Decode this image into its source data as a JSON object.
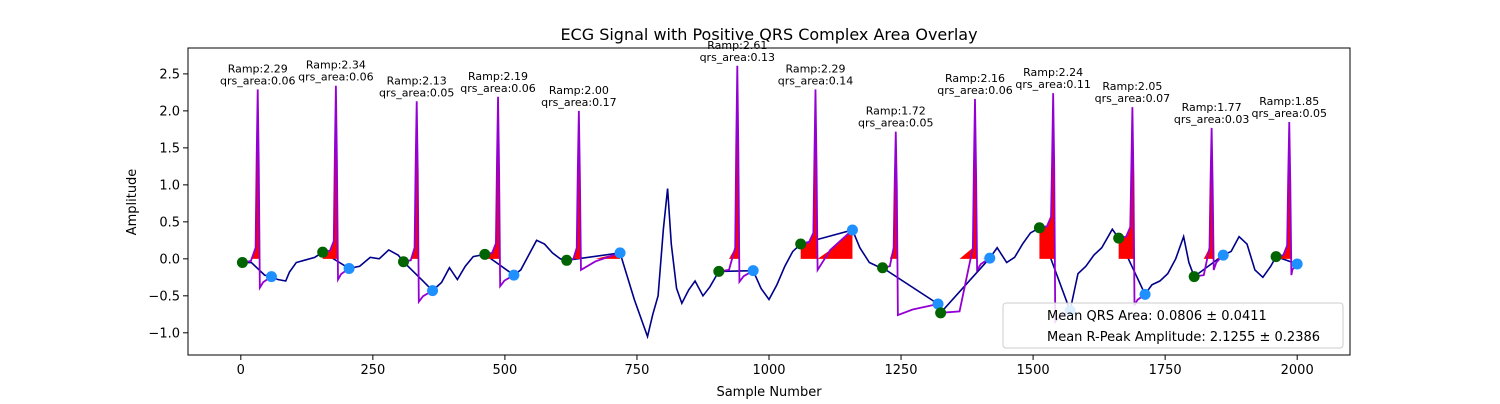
{
  "chart_data": {
    "type": "line",
    "title": "ECG Signal with Positive QRS Complex Area Overlay",
    "xlabel": "Sample Number",
    "ylabel": "Amplitude",
    "xlim": [
      -100,
      2100
    ],
    "ylim": [
      -1.3,
      2.85
    ],
    "xticks": [
      0,
      250,
      500,
      750,
      1000,
      1250,
      1500,
      1750,
      2000
    ],
    "yticks": [
      -1.0,
      -0.5,
      0.0,
      0.5,
      1.0,
      1.5,
      2.0,
      2.5
    ],
    "colors": {
      "ecg": "#00008b",
      "qrs_segment": "#9400d3",
      "area_fill": "#ff0000",
      "q_onset_marker": "#006400",
      "s_offset_marker": "#1e90ff"
    },
    "beats": [
      {
        "r_x": 32,
        "r_amp": 2.29,
        "qrs_area": 0.06,
        "ramp_label": "Ramp:2.29",
        "area_label": "qrs_area:0.06",
        "q": [
          3,
          -0.05
        ],
        "s": [
          58,
          -0.24
        ]
      },
      {
        "r_x": 180,
        "r_amp": 2.34,
        "qrs_area": 0.06,
        "ramp_label": "Ramp:2.34",
        "area_label": "qrs_area:0.06",
        "q": [
          155,
          0.09
        ],
        "s": [
          205,
          -0.13
        ]
      },
      {
        "r_x": 333,
        "r_amp": 2.13,
        "qrs_area": 0.05,
        "ramp_label": "Ramp:2.13",
        "area_label": "qrs_area:0.05",
        "q": [
          308,
          -0.04
        ],
        "s": [
          363,
          -0.43
        ]
      },
      {
        "r_x": 487,
        "r_amp": 2.19,
        "qrs_area": 0.06,
        "ramp_label": "Ramp:2.19",
        "area_label": "qrs_area:0.06",
        "q": [
          462,
          0.06
        ],
        "s": [
          517,
          -0.22
        ]
      },
      {
        "r_x": 640,
        "r_amp": 2.0,
        "qrs_area": 0.17,
        "ramp_label": "Ramp:2.00",
        "area_label": "qrs_area:0.17",
        "q": [
          617,
          -0.02
        ],
        "s": [
          718,
          0.08
        ]
      },
      {
        "r_x": 940,
        "r_amp": 2.61,
        "qrs_area": 0.13,
        "ramp_label": "Ramp:2.61",
        "area_label": "qrs_area:0.13",
        "q": [
          905,
          -0.17
        ],
        "s": [
          970,
          -0.16
        ]
      },
      {
        "r_x": 1088,
        "r_amp": 2.29,
        "qrs_area": 0.14,
        "ramp_label": "Ramp:2.29",
        "area_label": "qrs_area:0.14",
        "q": [
          1060,
          0.2
        ],
        "s": [
          1158,
          0.39
        ]
      },
      {
        "r_x": 1240,
        "r_amp": 1.72,
        "qrs_area": 0.05,
        "ramp_label": "Ramp:1.72",
        "area_label": "qrs_area:0.05",
        "q": [
          1215,
          -0.12
        ],
        "s": [
          1320,
          -0.61
        ]
      },
      {
        "r_x": 1390,
        "r_amp": 2.16,
        "qrs_area": 0.06,
        "ramp_label": "Ramp:2.16",
        "area_label": "qrs_area:0.06",
        "q": [
          1325,
          -0.73
        ],
        "s": [
          1418,
          0.01
        ]
      },
      {
        "r_x": 1538,
        "r_amp": 2.24,
        "qrs_area": 0.11,
        "ramp_label": "Ramp:2.24",
        "area_label": "qrs_area:0.11",
        "q": [
          1512,
          0.42
        ],
        "s": [
          1570,
          -0.7
        ]
      },
      {
        "r_x": 1688,
        "r_amp": 2.05,
        "qrs_area": 0.07,
        "ramp_label": "Ramp:2.05",
        "area_label": "qrs_area:0.07",
        "q": [
          1662,
          0.28
        ],
        "s": [
          1712,
          -0.48
        ]
      },
      {
        "r_x": 1838,
        "r_amp": 1.77,
        "qrs_area": 0.03,
        "ramp_label": "Ramp:1.77",
        "area_label": "qrs_area:0.03",
        "q": [
          1805,
          -0.24
        ],
        "s": [
          1860,
          0.05
        ]
      },
      {
        "r_x": 1985,
        "r_amp": 1.85,
        "qrs_area": 0.05,
        "ramp_label": "Ramp:1.85",
        "area_label": "qrs_area:0.05",
        "q": [
          1960,
          0.03
        ],
        "s": [
          2000,
          -0.07
        ]
      }
    ],
    "baseline": [
      [
        0,
        -0.05
      ],
      [
        20,
        -0.05
      ],
      [
        45,
        -0.22
      ],
      [
        58,
        -0.24
      ],
      [
        70,
        -0.28
      ],
      [
        85,
        -0.3
      ],
      [
        92,
        -0.18
      ],
      [
        105,
        -0.05
      ],
      [
        120,
        -0.02
      ],
      [
        140,
        0.02
      ],
      [
        155,
        0.09
      ],
      [
        205,
        -0.13
      ],
      [
        225,
        -0.1
      ],
      [
        245,
        0.02
      ],
      [
        262,
        0.0
      ],
      [
        280,
        0.12
      ],
      [
        298,
        0.05
      ],
      [
        308,
        -0.04
      ],
      [
        345,
        -0.3
      ],
      [
        363,
        -0.43
      ],
      [
        380,
        -0.32
      ],
      [
        395,
        -0.12
      ],
      [
        410,
        -0.28
      ],
      [
        425,
        -0.1
      ],
      [
        440,
        0.03
      ],
      [
        462,
        0.06
      ],
      [
        517,
        -0.22
      ],
      [
        530,
        -0.15
      ],
      [
        545,
        0.05
      ],
      [
        560,
        0.25
      ],
      [
        575,
        0.2
      ],
      [
        590,
        0.08
      ],
      [
        605,
        0.0
      ],
      [
        617,
        -0.02
      ],
      [
        718,
        0.08
      ],
      [
        730,
        -0.2
      ],
      [
        745,
        -0.55
      ],
      [
        760,
        -0.85
      ],
      [
        770,
        -1.05
      ],
      [
        780,
        -0.75
      ],
      [
        790,
        -0.5
      ],
      [
        800,
        0.4
      ],
      [
        808,
        0.95
      ],
      [
        815,
        0.2
      ],
      [
        825,
        -0.4
      ],
      [
        835,
        -0.6
      ],
      [
        848,
        -0.42
      ],
      [
        860,
        -0.3
      ],
      [
        875,
        -0.5
      ],
      [
        888,
        -0.38
      ],
      [
        905,
        -0.17
      ],
      [
        970,
        -0.16
      ],
      [
        985,
        -0.4
      ],
      [
        1000,
        -0.55
      ],
      [
        1015,
        -0.35
      ],
      [
        1030,
        -0.1
      ],
      [
        1045,
        0.1
      ],
      [
        1060,
        0.2
      ],
      [
        1158,
        0.39
      ],
      [
        1172,
        0.15
      ],
      [
        1190,
        -0.05
      ],
      [
        1205,
        -0.1
      ],
      [
        1215,
        -0.12
      ],
      [
        1320,
        -0.61
      ],
      [
        1325,
        -0.73
      ],
      [
        1418,
        0.01
      ],
      [
        1432,
        0.15
      ],
      [
        1450,
        -0.05
      ],
      [
        1465,
        0.02
      ],
      [
        1480,
        0.2
      ],
      [
        1495,
        0.35
      ],
      [
        1512,
        0.42
      ],
      [
        1570,
        -0.7
      ],
      [
        1585,
        -0.2
      ],
      [
        1600,
        -0.1
      ],
      [
        1615,
        0.05
      ],
      [
        1630,
        0.15
      ],
      [
        1650,
        0.4
      ],
      [
        1662,
        0.28
      ],
      [
        1712,
        -0.48
      ],
      [
        1725,
        -0.35
      ],
      [
        1740,
        -0.3
      ],
      [
        1755,
        -0.2
      ],
      [
        1770,
        0.0
      ],
      [
        1785,
        0.3
      ],
      [
        1795,
        -0.05
      ],
      [
        1805,
        -0.24
      ],
      [
        1860,
        0.05
      ],
      [
        1875,
        0.1
      ],
      [
        1890,
        0.3
      ],
      [
        1905,
        0.2
      ],
      [
        1920,
        -0.15
      ],
      [
        1935,
        -0.25
      ],
      [
        1950,
        -0.1
      ],
      [
        1960,
        0.03
      ],
      [
        2000,
        -0.07
      ]
    ],
    "legend": {
      "placement": "lower-right",
      "entries": [
        "Mean QRS Area: 0.0806 ± 0.0411",
        "Mean R-Peak Amplitude: 2.1255 ± 0.2386"
      ]
    },
    "grid": false
  }
}
